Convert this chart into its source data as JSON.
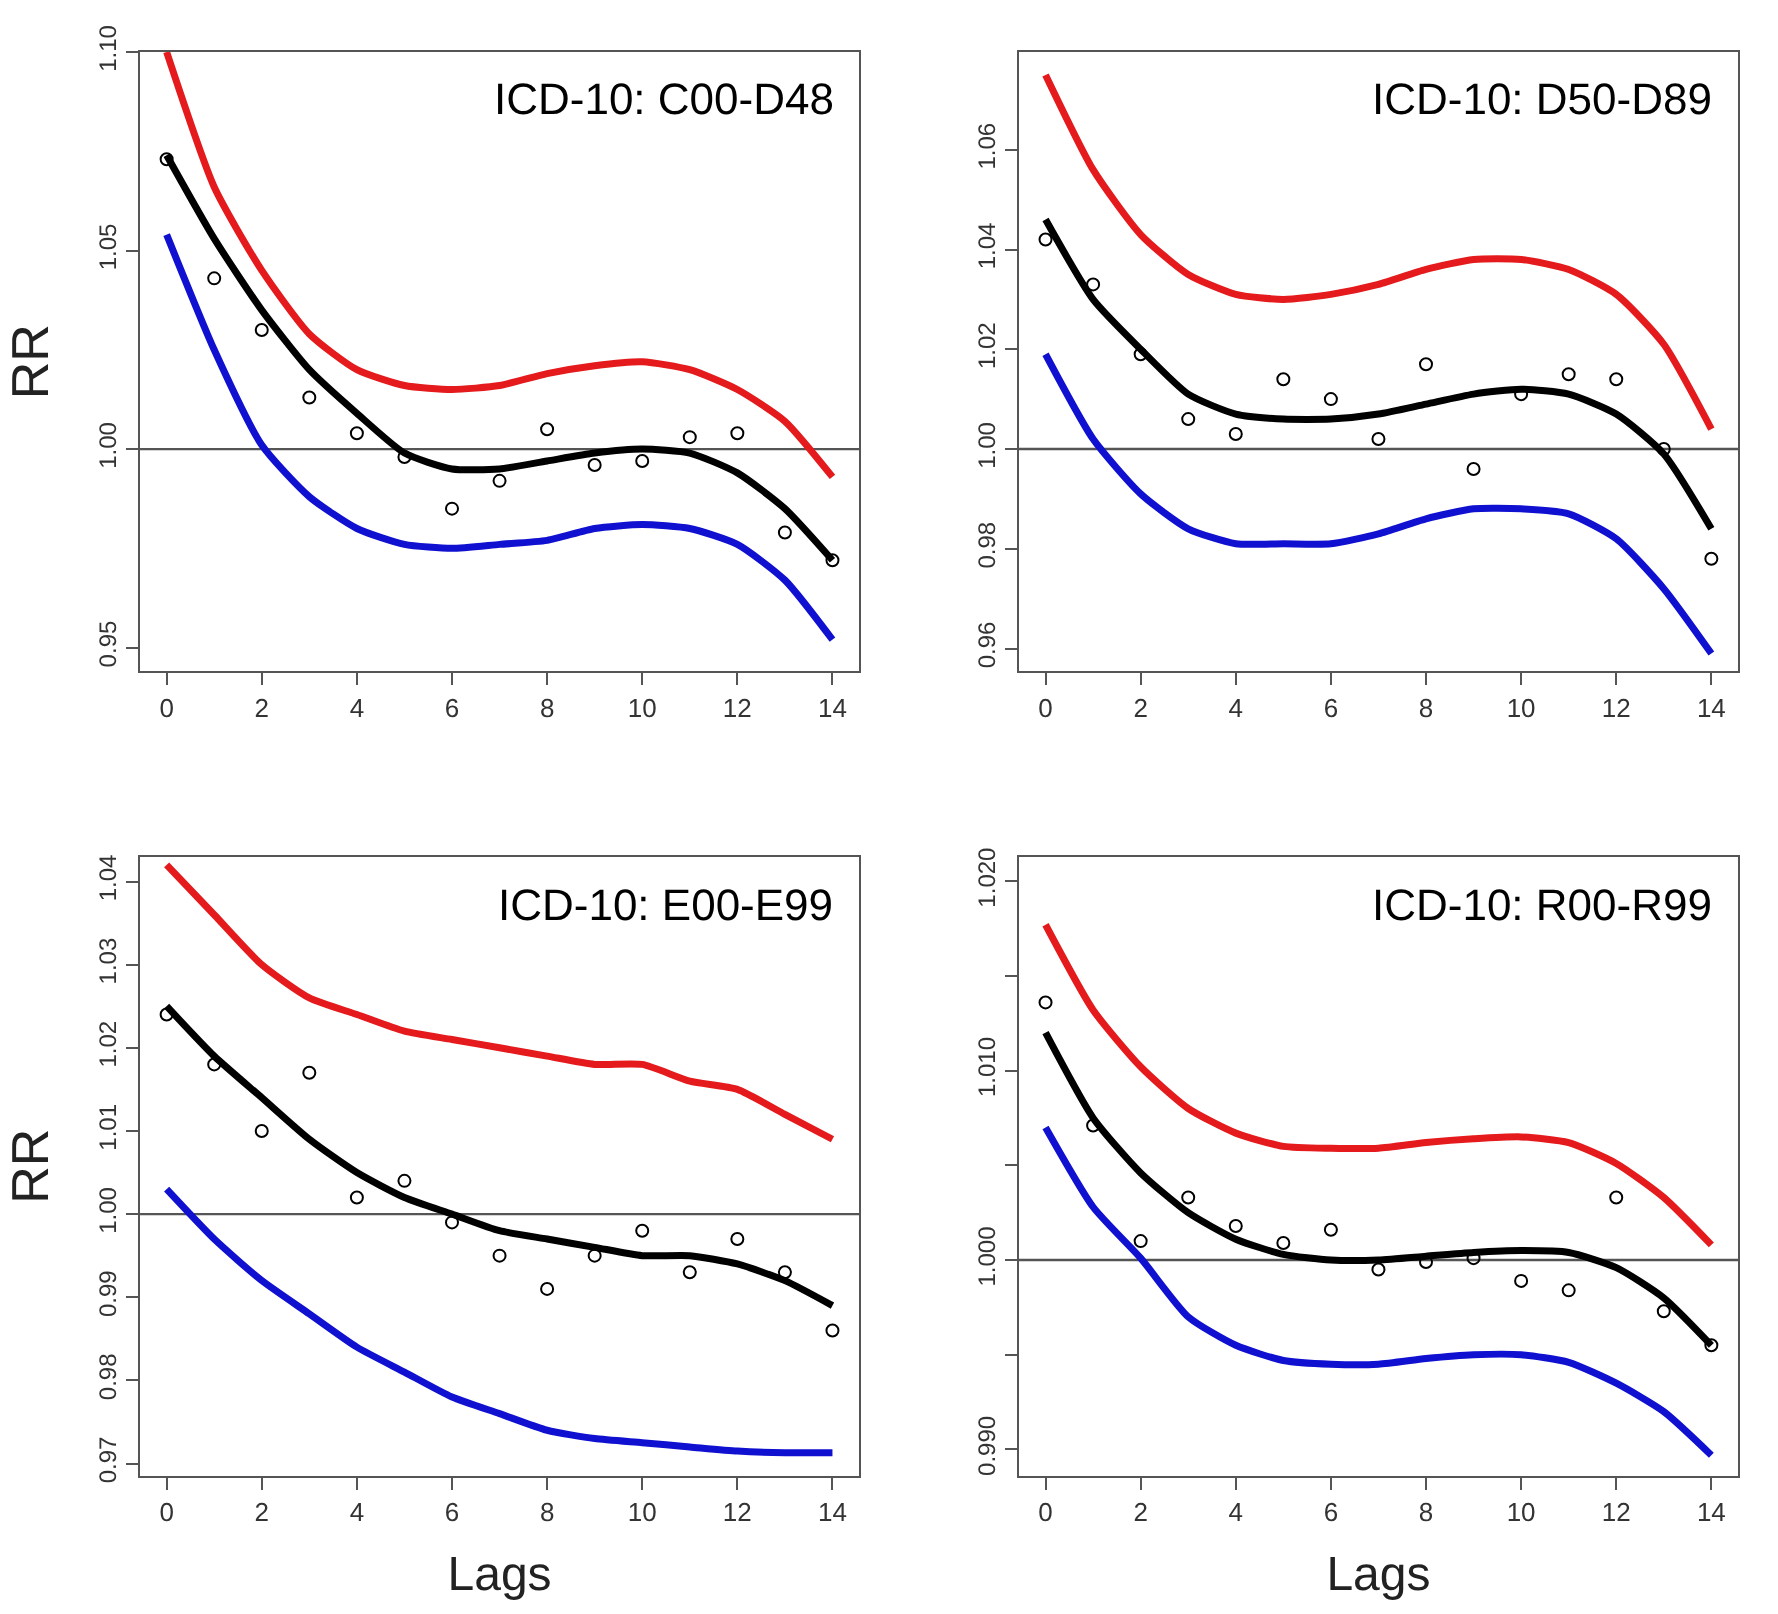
{
  "chart_data": [
    {
      "type": "line",
      "title": "ICD-10: C00-D48",
      "ylabel": "RR",
      "x": [
        0,
        1,
        2,
        3,
        4,
        5,
        6,
        7,
        8,
        9,
        10,
        11,
        12,
        13,
        14
      ],
      "xlim": [
        -0.56,
        14.56
      ],
      "xticks": [
        0,
        2,
        4,
        6,
        8,
        10,
        12,
        14
      ],
      "ylim": [
        0.944,
        1.1
      ],
      "yticks": [
        {
          "value": 0.95,
          "label": "0.95"
        },
        {
          "value": 1.0,
          "label": "1.00"
        },
        {
          "value": 1.05,
          "label": "1.05"
        },
        {
          "value": 1.1,
          "label": "1.10"
        }
      ],
      "line_style": "solid",
      "series": [
        {
          "color": "#e41a1c",
          "values": [
            1.1,
            1.066,
            1.045,
            1.029,
            1.02,
            1.016,
            1.015,
            1.016,
            1.019,
            1.021,
            1.022,
            1.02,
            1.015,
            1.007,
            0.993
          ]
        },
        {
          "color": "#000000",
          "values": [
            1.074,
            1.053,
            1.035,
            1.02,
            1.009,
            0.999,
            0.995,
            0.995,
            0.997,
            0.999,
            1.0,
            0.999,
            0.994,
            0.985,
            0.972
          ]
        },
        {
          "color": "#1010d0",
          "values": [
            1.054,
            1.025,
            1.001,
            0.988,
            0.98,
            0.976,
            0.975,
            0.976,
            0.977,
            0.98,
            0.981,
            0.98,
            0.976,
            0.967,
            0.952
          ]
        },
        {
          "type": "scatter",
          "marker": "circle",
          "color": "#000000",
          "values": [
            1.073,
            1.043,
            1.03,
            1.013,
            1.004,
            0.998,
            0.985,
            0.992,
            1.005,
            0.996,
            0.997,
            1.003,
            1.004,
            0.979,
            0.972
          ]
        }
      ],
      "ref_lines": [
        {
          "axis": "y",
          "value": 1.0,
          "color": "#555555"
        }
      ]
    },
    {
      "type": "line",
      "title": "ICD-10: D50-D89",
      "x": [
        0,
        1,
        2,
        3,
        4,
        5,
        6,
        7,
        8,
        9,
        10,
        11,
        12,
        13,
        14
      ],
      "xlim": [
        -0.56,
        14.56
      ],
      "xticks": [
        0,
        2,
        4,
        6,
        8,
        10,
        12,
        14
      ],
      "ylim": [
        0.9554,
        1.0796
      ],
      "yticks": [
        {
          "value": 0.96,
          "label": "0.96"
        },
        {
          "value": 0.98,
          "label": "0.98"
        },
        {
          "value": 1.0,
          "label": "1.00"
        },
        {
          "value": 1.02,
          "label": "1.02"
        },
        {
          "value": 1.04,
          "label": "1.04"
        },
        {
          "value": 1.06,
          "label": "1.06"
        }
      ],
      "line_style": "solid",
      "series": [
        {
          "color": "#e41a1c",
          "values": [
            1.075,
            1.056,
            1.043,
            1.035,
            1.031,
            1.03,
            1.031,
            1.033,
            1.036,
            1.038,
            1.038,
            1.036,
            1.031,
            1.021,
            1.004
          ]
        },
        {
          "color": "#000000",
          "values": [
            1.046,
            1.03,
            1.02,
            1.011,
            1.007,
            1.006,
            1.006,
            1.007,
            1.009,
            1.011,
            1.012,
            1.011,
            1.007,
            0.999,
            0.984
          ]
        },
        {
          "color": "#1010d0",
          "values": [
            1.019,
            1.002,
            0.991,
            0.984,
            0.981,
            0.981,
            0.981,
            0.983,
            0.986,
            0.988,
            0.988,
            0.987,
            0.982,
            0.972,
            0.959
          ]
        },
        {
          "type": "scatter",
          "marker": "circle",
          "color": "#000000",
          "values": [
            1.042,
            1.033,
            1.019,
            1.006,
            1.003,
            1.014,
            1.01,
            1.002,
            1.017,
            0.996,
            1.011,
            1.015,
            1.014,
            1.0,
            0.978
          ]
        }
      ],
      "ref_lines": [
        {
          "axis": "y",
          "value": 1.0,
          "color": "#555555"
        }
      ]
    },
    {
      "type": "line",
      "title": "ICD-10: E00-E99",
      "ylabel": "RR",
      "xlabel": "Lags",
      "x": [
        0,
        1,
        2,
        3,
        4,
        5,
        6,
        7,
        8,
        9,
        10,
        11,
        12,
        13,
        14
      ],
      "xlim": [
        -0.56,
        14.56
      ],
      "xticks": [
        0,
        2,
        4,
        6,
        8,
        10,
        12,
        14
      ],
      "ylim": [
        0.9685,
        1.043
      ],
      "yticks": [
        {
          "value": 0.97,
          "label": "0.97"
        },
        {
          "value": 0.98,
          "label": "0.98"
        },
        {
          "value": 0.99,
          "label": "0.99"
        },
        {
          "value": 1.0,
          "label": "1.00"
        },
        {
          "value": 1.01,
          "label": "1.01"
        },
        {
          "value": 1.02,
          "label": "1.02"
        },
        {
          "value": 1.03,
          "label": "1.03"
        },
        {
          "value": 1.04,
          "label": "1.04"
        }
      ],
      "line_style": "solid",
      "series": [
        {
          "color": "#e41a1c",
          "values": [
            1.042,
            1.036,
            1.03,
            1.026,
            1.024,
            1.022,
            1.021,
            1.02,
            1.019,
            1.018,
            1.018,
            1.016,
            1.015,
            1.012,
            1.009
          ]
        },
        {
          "color": "#000000",
          "values": [
            1.025,
            1.019,
            1.014,
            1.009,
            1.005,
            1.002,
            1.0,
            0.998,
            0.997,
            0.996,
            0.995,
            0.995,
            0.994,
            0.992,
            0.989
          ]
        },
        {
          "color": "#1010d0",
          "values": [
            1.003,
            0.997,
            0.992,
            0.988,
            0.984,
            0.981,
            0.978,
            0.976,
            0.974,
            0.973,
            0.9725,
            0.972,
            0.9715,
            0.9713,
            0.9713
          ]
        },
        {
          "type": "scatter",
          "marker": "circle",
          "color": "#000000",
          "values": [
            1.024,
            1.018,
            1.01,
            1.017,
            1.002,
            1.004,
            0.999,
            0.995,
            0.991,
            0.995,
            0.998,
            0.993,
            0.997,
            0.993,
            0.986
          ]
        }
      ],
      "ref_lines": [
        {
          "axis": "y",
          "value": 1.0,
          "color": "#555555"
        }
      ]
    },
    {
      "type": "line",
      "title": "ICD-10: R00-R99",
      "xlabel": "Lags",
      "x": [
        0,
        1,
        2,
        3,
        4,
        5,
        6,
        7,
        8,
        9,
        10,
        11,
        12,
        13,
        14
      ],
      "xlim": [
        -0.56,
        14.56
      ],
      "xticks": [
        0,
        2,
        4,
        6,
        8,
        10,
        12,
        14
      ],
      "ylim": [
        0.9886,
        1.0213
      ],
      "yticks": [
        {
          "value": 0.99,
          "label": "0.990"
        },
        {
          "value": 0.995,
          "label": null
        },
        {
          "value": 1.0,
          "label": "1.000"
        },
        {
          "value": 1.005,
          "label": null
        },
        {
          "value": 1.01,
          "label": "1.010"
        },
        {
          "value": 1.015,
          "label": null
        },
        {
          "value": 1.02,
          "label": "1.020"
        }
      ],
      "line_style": "solid",
      "series": [
        {
          "color": "#e41a1c",
          "values": [
            1.0177,
            1.0132,
            1.0102,
            1.008,
            1.0067,
            1.006,
            1.0059,
            1.0059,
            1.0062,
            1.0064,
            1.0065,
            1.0062,
            1.0051,
            1.0033,
            1.0008
          ]
        },
        {
          "color": "#000000",
          "values": [
            1.012,
            1.0075,
            1.0046,
            1.0025,
            1.0011,
            1.0003,
            1.0,
            1.0,
            1.0002,
            1.0004,
            1.0005,
            1.0004,
            0.9996,
            0.998,
            0.9955
          ]
        },
        {
          "color": "#1010d0",
          "values": [
            1.007,
            1.0028,
            1.0001,
            0.997,
            0.9955,
            0.9947,
            0.9945,
            0.9945,
            0.9948,
            0.995,
            0.995,
            0.9946,
            0.9935,
            0.992,
            0.9897
          ]
        },
        {
          "type": "scatter",
          "marker": "circle",
          "color": "#000000",
          "values": [
            1.0136,
            1.0071,
            1.001,
            1.0033,
            1.0018,
            1.0009,
            1.0016,
            0.9995,
            0.9999,
            1.0001,
            0.9989,
            0.9984,
            1.0033,
            0.9973,
            0.9955
          ]
        }
      ],
      "ref_lines": [
        {
          "axis": "y",
          "value": 1.0,
          "color": "#555555"
        }
      ]
    }
  ]
}
